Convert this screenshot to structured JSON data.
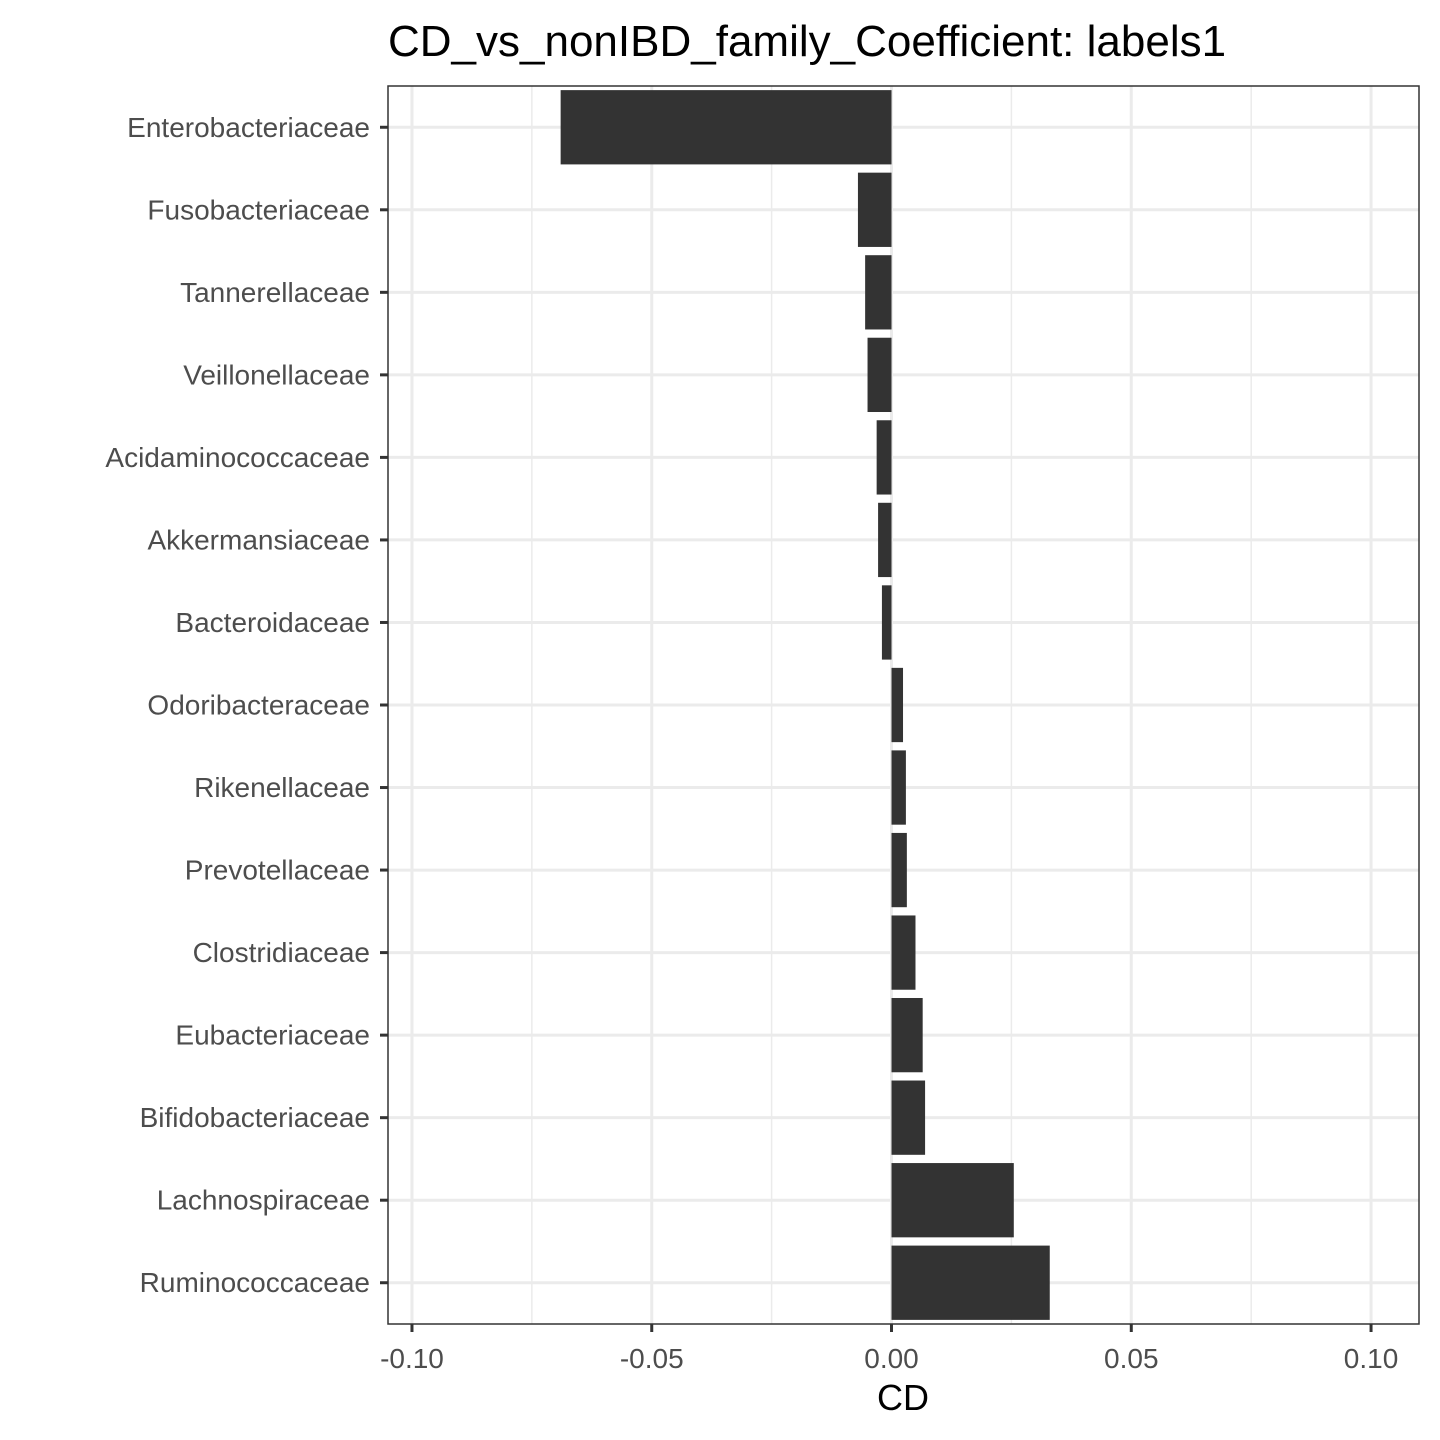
{
  "chart_data": {
    "type": "bar",
    "orientation": "horizontal",
    "title": "CD_vs_nonIBD_family_Coefficient: labels1",
    "xlabel": "CD",
    "ylabel": "",
    "xlim": [
      -0.105,
      0.11
    ],
    "xticks": [
      -0.1,
      -0.05,
      0.0,
      0.05,
      0.1
    ],
    "xtick_labels": [
      "-0.10",
      "-0.05",
      "0.00",
      "0.05",
      "0.10"
    ],
    "grid": true,
    "bar_color": "#333333",
    "categories": [
      "Enterobacteriaceae",
      "Fusobacteriaceae",
      "Tannerellaceae",
      "Veillonellaceae",
      "Acidaminococcaceae",
      "Akkermansiaceae",
      "Bacteroidaceae",
      "Odoribacteraceae",
      "Rikenellaceae",
      "Prevotellaceae",
      "Clostridiaceae",
      "Eubacteriaceae",
      "Bifidobacteriaceae",
      "Lachnospiraceae",
      "Ruminococcaceae"
    ],
    "values": [
      -0.069,
      -0.007,
      -0.0055,
      -0.005,
      -0.0031,
      -0.0028,
      -0.002,
      0.0024,
      0.003,
      0.0032,
      0.005,
      0.0065,
      0.007,
      0.0255,
      0.033
    ]
  }
}
